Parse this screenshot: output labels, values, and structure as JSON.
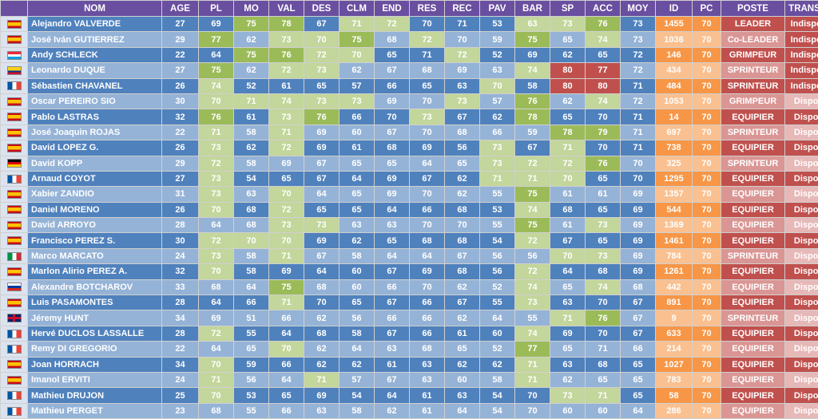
{
  "headers": [
    "",
    "NOM",
    "AGE",
    "PL",
    "MO",
    "VAL",
    "DES",
    "CLM",
    "END",
    "RES",
    "REC",
    "PAV",
    "BAR",
    "SP",
    "ACC",
    "MOY",
    "ID",
    "PC",
    "POSTE",
    "TRANSFERT"
  ],
  "colors": {
    "header": "#6a4fa0",
    "row_dark": "#4f81bd",
    "row_light": "#95b3d7",
    "green_strong": "#9bbb59",
    "green_light": "#c3d69b",
    "red": "#c0504d",
    "orange": "#f79646",
    "orange_light": "#fac090"
  },
  "rows": [
    {
      "flag": "es",
      "nom": "Alejandro VALVERDE",
      "vals": [
        "27",
        "69",
        "75",
        "78",
        "67",
        "71",
        "72",
        "70",
        "71",
        "53",
        "63",
        "73",
        "76",
        "73",
        "1455",
        "70",
        "LEADER",
        "Indisponible"
      ],
      "hi": {
        "MO": "g1",
        "VAL": "g1",
        "CLM": "g2",
        "END": "g2",
        "BAR": "g2",
        "SP": "g2",
        "ACC": "g1"
      }
    },
    {
      "flag": "es",
      "nom": "José Iván GUTIERREZ",
      "vals": [
        "29",
        "77",
        "62",
        "73",
        "70",
        "75",
        "68",
        "72",
        "70",
        "59",
        "75",
        "65",
        "74",
        "73",
        "1036",
        "70",
        "Co-LEADER",
        "Indisponible"
      ],
      "hi": {
        "PL": "g1",
        "VAL": "g2",
        "DES": "g2",
        "CLM": "g1",
        "RES": "g2",
        "BAR": "g1",
        "ACC": "g2"
      }
    },
    {
      "flag": "lu",
      "nom": "Andy SCHLECK",
      "vals": [
        "22",
        "64",
        "75",
        "76",
        "72",
        "70",
        "65",
        "71",
        "72",
        "52",
        "69",
        "62",
        "65",
        "72",
        "146",
        "70",
        "GRIMPEUR",
        "Indisponible"
      ],
      "hi": {
        "MO": "g1",
        "VAL": "g1",
        "DES": "g2",
        "CLM": "g2",
        "REC": "g2"
      }
    },
    {
      "flag": "co",
      "nom": "Leonardo DUQUE",
      "vals": [
        "27",
        "75",
        "62",
        "72",
        "73",
        "62",
        "67",
        "68",
        "69",
        "63",
        "74",
        "80",
        "77",
        "72",
        "434",
        "70",
        "SPRINTEUR",
        "Indisponible"
      ],
      "hi": {
        "PL": "g1",
        "VAL": "g2",
        "DES": "g2",
        "BAR": "g2",
        "SP": "red",
        "ACC": "red"
      }
    },
    {
      "flag": "fr",
      "nom": "Sébastien CHAVANEL",
      "vals": [
        "26",
        "74",
        "52",
        "61",
        "65",
        "57",
        "66",
        "65",
        "63",
        "70",
        "58",
        "80",
        "80",
        "71",
        "484",
        "70",
        "SPRINTEUR",
        "Indisponible"
      ],
      "hi": {
        "PL": "g2",
        "PAV": "g2",
        "SP": "red",
        "ACC": "red"
      }
    },
    {
      "flag": "es",
      "nom": "Oscar PEREIRO SIO",
      "vals": [
        "30",
        "70",
        "71",
        "74",
        "73",
        "73",
        "69",
        "70",
        "73",
        "57",
        "76",
        "62",
        "74",
        "72",
        "1053",
        "70",
        "GRIMPEUR",
        "Disponible"
      ],
      "hi": {
        "PL": "g2",
        "MO": "g2",
        "VAL": "g2",
        "DES": "g2",
        "CLM": "g2",
        "REC": "g2",
        "BAR": "g1",
        "ACC": "g2"
      }
    },
    {
      "flag": "es",
      "nom": "Pablo LASTRAS",
      "vals": [
        "32",
        "76",
        "61",
        "73",
        "76",
        "66",
        "70",
        "73",
        "67",
        "62",
        "78",
        "65",
        "70",
        "71",
        "14",
        "70",
        "EQUIPIER",
        "Disponible"
      ],
      "hi": {
        "PL": "g1",
        "VAL": "g2",
        "DES": "g1",
        "RES": "g2",
        "BAR": "g1"
      }
    },
    {
      "flag": "es",
      "nom": "José Joaquin ROJAS",
      "vals": [
        "22",
        "71",
        "58",
        "71",
        "69",
        "60",
        "67",
        "70",
        "68",
        "66",
        "59",
        "78",
        "79",
        "71",
        "697",
        "70",
        "SPRINTEUR",
        "Disponible"
      ],
      "hi": {
        "PL": "g2",
        "VAL": "g2",
        "SP": "g1",
        "ACC": "g1"
      }
    },
    {
      "flag": "es",
      "nom": "David LOPEZ G.",
      "vals": [
        "26",
        "73",
        "62",
        "72",
        "69",
        "61",
        "68",
        "69",
        "56",
        "73",
        "67",
        "71",
        "70",
        "71",
        "738",
        "70",
        "EQUIPIER",
        "Disponible"
      ],
      "hi": {
        "PL": "g2",
        "VAL": "g2",
        "PAV": "g2",
        "SP": "g2"
      }
    },
    {
      "flag": "de",
      "nom": "David KOPP",
      "vals": [
        "29",
        "72",
        "58",
        "69",
        "67",
        "65",
        "65",
        "64",
        "65",
        "73",
        "72",
        "72",
        "76",
        "70",
        "325",
        "70",
        "SPRINTEUR",
        "Disponible"
      ],
      "hi": {
        "PL": "g2",
        "PAV": "g2",
        "BAR": "g2",
        "SP": "g2",
        "ACC": "g1"
      }
    },
    {
      "flag": "fr",
      "nom": "Arnaud COYOT",
      "vals": [
        "27",
        "73",
        "54",
        "65",
        "67",
        "64",
        "69",
        "67",
        "62",
        "71",
        "71",
        "70",
        "65",
        "70",
        "1295",
        "70",
        "EQUIPIER",
        "Disponible"
      ],
      "hi": {
        "PL": "g2",
        "PAV": "g2",
        "BAR": "g2",
        "SP": "g2"
      }
    },
    {
      "flag": "es",
      "nom": "Xabier ZANDIO",
      "vals": [
        "31",
        "73",
        "63",
        "70",
        "64",
        "65",
        "69",
        "70",
        "62",
        "55",
        "75",
        "61",
        "61",
        "69",
        "1357",
        "70",
        "EQUIPIER",
        "Disponible"
      ],
      "hi": {
        "PL": "g2",
        "VAL": "g2",
        "BAR": "g1"
      }
    },
    {
      "flag": "es",
      "nom": "Daniel MORENO",
      "vals": [
        "26",
        "70",
        "68",
        "72",
        "65",
        "65",
        "64",
        "66",
        "68",
        "53",
        "74",
        "68",
        "65",
        "69",
        "544",
        "70",
        "EQUIPIER",
        "Disponible"
      ],
      "hi": {
        "PL": "g2",
        "VAL": "g2",
        "BAR": "g2"
      }
    },
    {
      "flag": "es",
      "nom": "David ARROYO",
      "vals": [
        "28",
        "64",
        "68",
        "73",
        "73",
        "63",
        "63",
        "70",
        "70",
        "55",
        "75",
        "61",
        "73",
        "69",
        "1369",
        "70",
        "EQUIPIER",
        "Disponible"
      ],
      "hi": {
        "VAL": "g2",
        "DES": "g2",
        "BAR": "g1",
        "ACC": "g2"
      }
    },
    {
      "flag": "es",
      "nom": "Francisco PEREZ S.",
      "vals": [
        "30",
        "72",
        "70",
        "70",
        "69",
        "62",
        "65",
        "68",
        "68",
        "54",
        "72",
        "67",
        "65",
        "69",
        "1461",
        "70",
        "EQUIPIER",
        "Disponible"
      ],
      "hi": {
        "PL": "g2",
        "MO": "g2",
        "VAL": "g2",
        "BAR": "g2"
      }
    },
    {
      "flag": "it",
      "nom": "Marco MARCATO",
      "vals": [
        "24",
        "73",
        "58",
        "71",
        "67",
        "58",
        "64",
        "64",
        "67",
        "56",
        "56",
        "70",
        "73",
        "69",
        "784",
        "70",
        "SPRINTEUR",
        "Disponible"
      ],
      "hi": {
        "PL": "g2",
        "VAL": "g2",
        "SP": "g2",
        "ACC": "g2"
      }
    },
    {
      "flag": "es",
      "nom": "Marlon Alirio PEREZ A.",
      "vals": [
        "32",
        "70",
        "58",
        "69",
        "64",
        "60",
        "67",
        "69",
        "68",
        "56",
        "72",
        "64",
        "68",
        "69",
        "1261",
        "70",
        "EQUIPIER",
        "Disponible"
      ],
      "hi": {
        "PL": "g2",
        "BAR": "g2"
      }
    },
    {
      "flag": "ru",
      "nom": "Alexandre BOTCHAROV",
      "vals": [
        "33",
        "68",
        "64",
        "75",
        "68",
        "60",
        "66",
        "70",
        "62",
        "52",
        "74",
        "65",
        "74",
        "68",
        "442",
        "70",
        "EQUIPIER",
        "Disponible"
      ],
      "hi": {
        "VAL": "g1",
        "BAR": "g2",
        "ACC": "g2"
      }
    },
    {
      "flag": "es",
      "nom": "Luis PASAMONTES",
      "vals": [
        "28",
        "64",
        "66",
        "71",
        "70",
        "65",
        "67",
        "66",
        "67",
        "55",
        "73",
        "63",
        "70",
        "67",
        "891",
        "70",
        "EQUIPIER",
        "Disponible"
      ],
      "hi": {
        "VAL": "g2",
        "BAR": "g2"
      }
    },
    {
      "flag": "gb",
      "nom": "Jéremy HUNT",
      "vals": [
        "34",
        "69",
        "51",
        "66",
        "62",
        "56",
        "66",
        "66",
        "62",
        "64",
        "55",
        "71",
        "76",
        "67",
        "9",
        "70",
        "SPRINTEUR",
        "Disponible"
      ],
      "hi": {
        "SP": "g2",
        "ACC": "g1"
      }
    },
    {
      "flag": "fr",
      "nom": "Hervé DUCLOS LASSALLE",
      "vals": [
        "28",
        "72",
        "55",
        "64",
        "68",
        "58",
        "67",
        "66",
        "61",
        "60",
        "74",
        "69",
        "70",
        "67",
        "633",
        "70",
        "EQUIPIER",
        "Disponible"
      ],
      "hi": {
        "PL": "g2",
        "BAR": "g2"
      }
    },
    {
      "flag": "fr",
      "nom": "Remy DI GREGORIO",
      "vals": [
        "22",
        "64",
        "65",
        "70",
        "62",
        "64",
        "63",
        "68",
        "65",
        "52",
        "77",
        "65",
        "71",
        "66",
        "214",
        "70",
        "EQUIPIER",
        "Disponible"
      ],
      "hi": {
        "VAL": "g2",
        "BAR": "g1"
      }
    },
    {
      "flag": "es",
      "nom": "Joan HORRACH",
      "vals": [
        "34",
        "70",
        "59",
        "66",
        "62",
        "62",
        "61",
        "63",
        "62",
        "62",
        "71",
        "63",
        "68",
        "65",
        "1027",
        "70",
        "EQUIPIER",
        "Disponible"
      ],
      "hi": {
        "PL": "g2",
        "BAR": "g2"
      }
    },
    {
      "flag": "es",
      "nom": "Imanol ERVITI",
      "vals": [
        "24",
        "71",
        "56",
        "64",
        "71",
        "57",
        "67",
        "63",
        "60",
        "58",
        "71",
        "62",
        "65",
        "65",
        "783",
        "70",
        "EQUIPIER",
        "Disponible"
      ],
      "hi": {
        "PL": "g2",
        "DES": "g2",
        "BAR": "g2"
      }
    },
    {
      "flag": "fr",
      "nom": "Mathieu DRUJON",
      "vals": [
        "25",
        "70",
        "53",
        "65",
        "69",
        "54",
        "64",
        "61",
        "63",
        "54",
        "70",
        "73",
        "71",
        "65",
        "58",
        "70",
        "EQUIPIER",
        "Disponible"
      ],
      "hi": {
        "PL": "g2",
        "SP": "g2",
        "ACC": "g2"
      }
    },
    {
      "flag": "fr",
      "nom": "Mathieu PERGET",
      "vals": [
        "23",
        "68",
        "55",
        "66",
        "63",
        "58",
        "62",
        "61",
        "64",
        "54",
        "70",
        "60",
        "60",
        "64",
        "286",
        "70",
        "EQUIPIER",
        "Disponible"
      ],
      "hi": {}
    }
  ]
}
